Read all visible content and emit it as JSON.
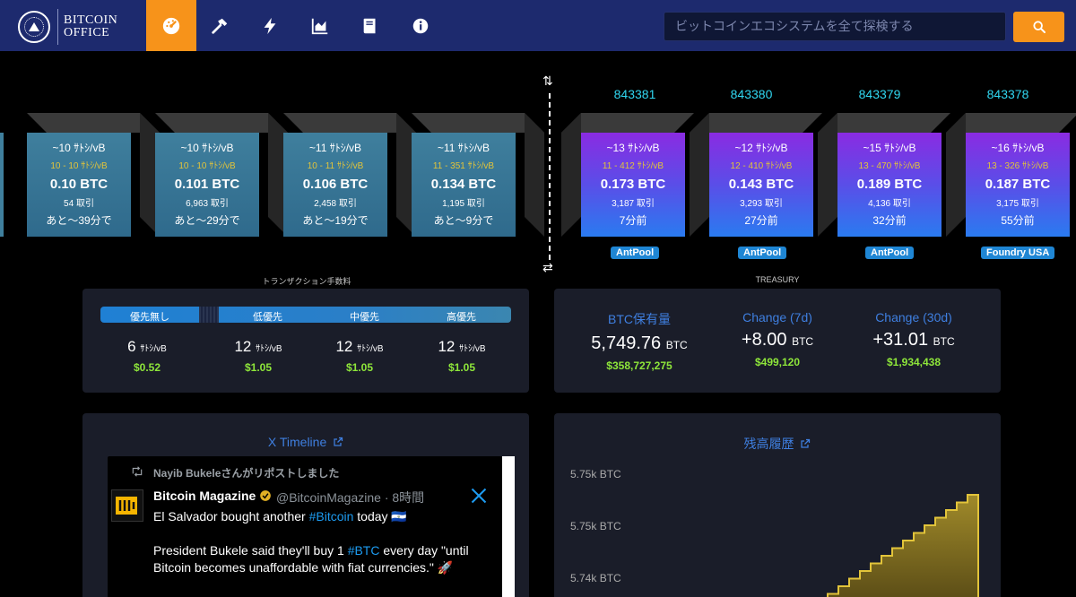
{
  "brand": {
    "line1": "BITCOIN",
    "line2": "OFFICE"
  },
  "nav": [
    {
      "name": "dashboard-icon",
      "active": true
    },
    {
      "name": "hammer-icon"
    },
    {
      "name": "lightning-icon"
    },
    {
      "name": "chart-icon"
    },
    {
      "name": "book-icon"
    },
    {
      "name": "info-icon"
    }
  ],
  "search": {
    "placeholder": "ビットコインエコシステムを全て探検する"
  },
  "pending_blocks": [
    {
      "fee": "~10 ｻﾄｼ/vB",
      "range": "10 - 10 ｻﾄｼ/vB",
      "btc": "0.10 BTC",
      "tx": "54 取引",
      "eta": "あと〜39分で"
    },
    {
      "fee": "~10 ｻﾄｼ/vB",
      "range": "10 - 10 ｻﾄｼ/vB",
      "btc": "0.101 BTC",
      "tx": "6,963 取引",
      "eta": "あと〜29分で"
    },
    {
      "fee": "~11 ｻﾄｼ/vB",
      "range": "10 - 11 ｻﾄｼ/vB",
      "btc": "0.106 BTC",
      "tx": "2,458 取引",
      "eta": "あと〜19分で"
    },
    {
      "fee": "~11 ｻﾄｼ/vB",
      "range": "11 - 351 ｻﾄｼ/vB",
      "btc": "0.134 BTC",
      "tx": "1,195 取引",
      "eta": "あと〜9分で"
    }
  ],
  "mined_blocks": [
    {
      "height": "843381",
      "fee": "~13 ｻﾄｼ/vB",
      "range": "11 - 412 ｻﾄｼ/vB",
      "btc": "0.173 BTC",
      "tx": "3,187 取引",
      "age": "7分前",
      "pool": "AntPool"
    },
    {
      "height": "843380",
      "fee": "~12 ｻﾄｼ/vB",
      "range": "12 - 410 ｻﾄｼ/vB",
      "btc": "0.143 BTC",
      "tx": "3,293 取引",
      "age": "27分前",
      "pool": "AntPool"
    },
    {
      "height": "843379",
      "fee": "~15 ｻﾄｼ/vB",
      "range": "13 - 470 ｻﾄｼ/vB",
      "btc": "0.189 BTC",
      "tx": "4,136 取引",
      "age": "32分前",
      "pool": "AntPool"
    },
    {
      "height": "843378",
      "fee": "~16 ｻﾄｼ/vB",
      "range": "13 - 326 ｻﾄｼ/vB",
      "btc": "0.187 BTC",
      "tx": "3,175 取引",
      "age": "55分前",
      "pool": "Foundry USA"
    }
  ],
  "arrows": {
    "top": "⇅",
    "bottom": "⇄"
  },
  "fees": {
    "label": "トランザクション手数料",
    "priorities": [
      {
        "label": "優先無し",
        "value": "6",
        "unit": "ｻﾄｼ/vB",
        "usd": "$0.52"
      },
      {
        "label": "低優先",
        "value": "12",
        "unit": "ｻﾄｼ/vB",
        "usd": "$1.05"
      },
      {
        "label": "中優先",
        "value": "12",
        "unit": "ｻﾄｼ/vB",
        "usd": "$1.05"
      },
      {
        "label": "高優先",
        "value": "12",
        "unit": "ｻﾄｼ/vB",
        "usd": "$1.05"
      }
    ]
  },
  "treasury": {
    "label": "TREASURY",
    "columns": [
      {
        "head": "BTC保有量",
        "value": "5,749.76",
        "unit": "BTC",
        "usd": "$358,727,275"
      },
      {
        "head": "Change (7d)",
        "value": "+8.00",
        "unit": "BTC",
        "usd": "$499,120"
      },
      {
        "head": "Change (30d)",
        "value": "+31.01",
        "unit": "BTC",
        "usd": "$1,934,438"
      }
    ]
  },
  "timeline": {
    "title": "X Timeline",
    "repost": "Nayib Bukeleさんがリポストしました",
    "author": "Bitcoin Magazine",
    "handle": "@BitcoinMagazine · 8時間",
    "line1_a": "El Salvador bought another ",
    "line1_tag": "#Bitcoin",
    "line1_b": " today",
    "line2_a": "President Bukele said they'll buy 1 ",
    "line2_tag": "#BTC",
    "line2_b": " every day \"until Bitcoin becomes unaffordable with fiat currencies.\" 🚀",
    "flag": "🇸🇻"
  },
  "balance": {
    "title": "残高履歴",
    "chart_data": {
      "type": "area",
      "yticks": [
        "5.75k BTC",
        "5.75k BTC",
        "5.74k BTC"
      ],
      "step_color": "#e2c43a"
    }
  }
}
